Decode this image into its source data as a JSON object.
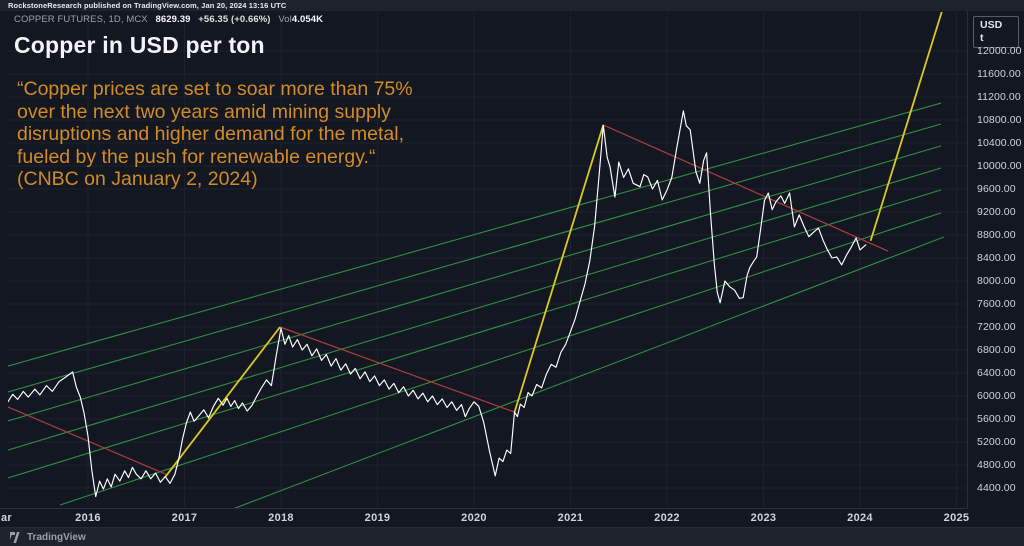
{
  "banner": {
    "text": "RockstoneResearch published on TradingView.com, Jan 20, 2024 13:16 UTC"
  },
  "legend": {
    "symbol": "COPPER FUTURES, 1D, MCX",
    "price": "8629.39",
    "change": "+56.35 (+0.66%)",
    "vol_label": "Vol",
    "volume": "4.054K"
  },
  "title": "Copper in USD per ton",
  "quote": {
    "lines": [
      "“Copper prices are set to soar more than 75%",
      "over the next two years amid mining supply",
      "disruptions and higher demand for the metal,",
      "fueled by the push for renewable energy.“",
      "(CNBC on January 2, 2024)"
    ]
  },
  "price_axis": {
    "unit_top": "USD",
    "unit_bottom": "t",
    "labels": [
      "12000.00",
      "11600.00",
      "11200.00",
      "10800.00",
      "10400.00",
      "10000.00",
      "9600.00",
      "9200.00",
      "8800.00",
      "8400.00",
      "8000.00",
      "7600.00",
      "7200.00",
      "6800.00",
      "6400.00",
      "6000.00",
      "5600.00",
      "5200.00",
      "4800.00",
      "4400.00"
    ]
  },
  "time_axis": {
    "partial_left": "ar",
    "years": [
      "2016",
      "2017",
      "2018",
      "2019",
      "2020",
      "2021",
      "2022",
      "2023",
      "2024",
      "2025"
    ]
  },
  "footer": {
    "brand": "TradingView",
    "logo_icon": "tradingview-icon"
  },
  "colors": {
    "background": "#131722",
    "panel": "#1e222d",
    "grid": "#1b2029",
    "price_line": "#ffffff",
    "green_line": "#2f8f3f",
    "red_line": "#ad3e3e",
    "yellow_line": "#ddc81f",
    "quote_text": "#d28b25",
    "axis_text": "#cfd3dc"
  },
  "chart_data": {
    "type": "line",
    "title": "Copper in USD per ton",
    "x_unit": "year (decimal)",
    "y_unit": "USD per ton",
    "x_range": [
      2015.17,
      2025.1
    ],
    "y_range": [
      4000,
      12450
    ],
    "grid": "faint",
    "legend_position": "top-left",
    "series": [
      {
        "name": "COPPER FUTURES MCX (close)",
        "color": "#ffffff",
        "points": [
          [
            2015.17,
            5900
          ],
          [
            2015.22,
            6030
          ],
          [
            2015.27,
            5940
          ],
          [
            2015.33,
            6080
          ],
          [
            2015.38,
            5980
          ],
          [
            2015.45,
            6120
          ],
          [
            2015.5,
            6020
          ],
          [
            2015.57,
            6180
          ],
          [
            2015.63,
            6080
          ],
          [
            2015.7,
            6250
          ],
          [
            2015.77,
            6330
          ],
          [
            2015.84,
            6420
          ],
          [
            2015.88,
            6150
          ],
          [
            2015.92,
            5980
          ],
          [
            2015.96,
            5700
          ],
          [
            2016.0,
            5300
          ],
          [
            2016.04,
            4700
          ],
          [
            2016.08,
            4250
          ],
          [
            2016.12,
            4520
          ],
          [
            2016.16,
            4380
          ],
          [
            2016.2,
            4560
          ],
          [
            2016.24,
            4420
          ],
          [
            2016.28,
            4640
          ],
          [
            2016.33,
            4520
          ],
          [
            2016.38,
            4700
          ],
          [
            2016.42,
            4580
          ],
          [
            2016.46,
            4760
          ],
          [
            2016.5,
            4640
          ],
          [
            2016.55,
            4560
          ],
          [
            2016.6,
            4700
          ],
          [
            2016.65,
            4560
          ],
          [
            2016.7,
            4660
          ],
          [
            2016.75,
            4500
          ],
          [
            2016.8,
            4600
          ],
          [
            2016.85,
            4480
          ],
          [
            2016.9,
            4640
          ],
          [
            2016.94,
            4900
          ],
          [
            2016.98,
            5260
          ],
          [
            2017.02,
            5530
          ],
          [
            2017.06,
            5720
          ],
          [
            2017.1,
            5560
          ],
          [
            2017.15,
            5660
          ],
          [
            2017.2,
            5760
          ],
          [
            2017.25,
            5620
          ],
          [
            2017.3,
            5820
          ],
          [
            2017.35,
            5960
          ],
          [
            2017.4,
            5840
          ],
          [
            2017.44,
            5960
          ],
          [
            2017.48,
            5820
          ],
          [
            2017.52,
            5920
          ],
          [
            2017.56,
            5780
          ],
          [
            2017.6,
            5880
          ],
          [
            2017.65,
            5740
          ],
          [
            2017.7,
            5840
          ],
          [
            2017.75,
            6000
          ],
          [
            2017.8,
            6150
          ],
          [
            2017.85,
            6280
          ],
          [
            2017.9,
            6180
          ],
          [
            2017.95,
            6700
          ],
          [
            2018.0,
            7180
          ],
          [
            2018.04,
            6900
          ],
          [
            2018.08,
            7050
          ],
          [
            2018.12,
            6850
          ],
          [
            2018.17,
            6980
          ],
          [
            2018.22,
            6800
          ],
          [
            2018.27,
            6900
          ],
          [
            2018.32,
            6700
          ],
          [
            2018.37,
            6820
          ],
          [
            2018.42,
            6620
          ],
          [
            2018.47,
            6720
          ],
          [
            2018.52,
            6520
          ],
          [
            2018.57,
            6650
          ],
          [
            2018.62,
            6450
          ],
          [
            2018.67,
            6560
          ],
          [
            2018.72,
            6380
          ],
          [
            2018.77,
            6480
          ],
          [
            2018.82,
            6300
          ],
          [
            2018.87,
            6420
          ],
          [
            2018.92,
            6250
          ],
          [
            2018.97,
            6350
          ],
          [
            2019.02,
            6180
          ],
          [
            2019.07,
            6280
          ],
          [
            2019.12,
            6120
          ],
          [
            2019.17,
            6220
          ],
          [
            2019.22,
            6060
          ],
          [
            2019.27,
            6160
          ],
          [
            2019.32,
            6000
          ],
          [
            2019.37,
            6100
          ],
          [
            2019.42,
            5950
          ],
          [
            2019.47,
            6050
          ],
          [
            2019.52,
            5900
          ],
          [
            2019.57,
            6000
          ],
          [
            2019.62,
            5850
          ],
          [
            2019.67,
            5950
          ],
          [
            2019.72,
            5800
          ],
          [
            2019.77,
            5900
          ],
          [
            2019.82,
            5750
          ],
          [
            2019.87,
            5850
          ],
          [
            2019.91,
            5640
          ],
          [
            2019.95,
            5780
          ],
          [
            2020.0,
            5900
          ],
          [
            2020.05,
            5820
          ],
          [
            2020.1,
            5550
          ],
          [
            2020.16,
            5050
          ],
          [
            2020.22,
            4610
          ],
          [
            2020.26,
            4920
          ],
          [
            2020.3,
            4860
          ],
          [
            2020.34,
            5060
          ],
          [
            2020.38,
            5000
          ],
          [
            2020.42,
            5720
          ],
          [
            2020.45,
            5640
          ],
          [
            2020.48,
            5860
          ],
          [
            2020.52,
            5800
          ],
          [
            2020.56,
            6060
          ],
          [
            2020.6,
            6000
          ],
          [
            2020.65,
            6200
          ],
          [
            2020.7,
            6140
          ],
          [
            2020.75,
            6380
          ],
          [
            2020.8,
            6550
          ],
          [
            2020.85,
            6500
          ],
          [
            2020.9,
            6760
          ],
          [
            2020.95,
            6900
          ],
          [
            2021.0,
            7120
          ],
          [
            2021.05,
            7350
          ],
          [
            2021.1,
            7650
          ],
          [
            2021.15,
            7950
          ],
          [
            2021.2,
            8350
          ],
          [
            2021.25,
            8950
          ],
          [
            2021.3,
            9900
          ],
          [
            2021.34,
            10710
          ],
          [
            2021.38,
            10150
          ],
          [
            2021.41,
            9980
          ],
          [
            2021.46,
            9460
          ],
          [
            2021.5,
            10070
          ],
          [
            2021.55,
            9800
          ],
          [
            2021.6,
            9950
          ],
          [
            2021.65,
            9700
          ],
          [
            2021.72,
            9640
          ],
          [
            2021.76,
            9850
          ],
          [
            2021.8,
            9810
          ],
          [
            2021.85,
            9600
          ],
          [
            2021.9,
            9750
          ],
          [
            2021.95,
            9410
          ],
          [
            2022.0,
            9580
          ],
          [
            2022.05,
            9800
          ],
          [
            2022.1,
            10300
          ],
          [
            2022.17,
            10960
          ],
          [
            2022.2,
            10700
          ],
          [
            2022.24,
            10630
          ],
          [
            2022.3,
            9900
          ],
          [
            2022.34,
            9700
          ],
          [
            2022.38,
            10100
          ],
          [
            2022.41,
            10230
          ],
          [
            2022.45,
            9200
          ],
          [
            2022.49,
            8300
          ],
          [
            2022.52,
            7810
          ],
          [
            2022.55,
            7620
          ],
          [
            2022.6,
            8000
          ],
          [
            2022.65,
            7900
          ],
          [
            2022.7,
            7840
          ],
          [
            2022.75,
            7700
          ],
          [
            2022.79,
            7710
          ],
          [
            2022.83,
            8100
          ],
          [
            2022.86,
            8240
          ],
          [
            2022.9,
            8350
          ],
          [
            2022.93,
            8420
          ],
          [
            2022.97,
            8900
          ],
          [
            2023.01,
            9400
          ],
          [
            2023.05,
            9530
          ],
          [
            2023.09,
            9240
          ],
          [
            2023.13,
            9380
          ],
          [
            2023.18,
            9480
          ],
          [
            2023.22,
            9350
          ],
          [
            2023.27,
            9530
          ],
          [
            2023.32,
            8940
          ],
          [
            2023.37,
            9150
          ],
          [
            2023.42,
            8950
          ],
          [
            2023.47,
            8770
          ],
          [
            2023.52,
            8850
          ],
          [
            2023.57,
            8920
          ],
          [
            2023.62,
            8700
          ],
          [
            2023.66,
            8550
          ],
          [
            2023.71,
            8400
          ],
          [
            2023.76,
            8420
          ],
          [
            2023.81,
            8280
          ],
          [
            2023.86,
            8450
          ],
          [
            2023.91,
            8590
          ],
          [
            2023.96,
            8750
          ],
          [
            2024.0,
            8540
          ],
          [
            2024.06,
            8629
          ]
        ]
      }
    ],
    "annotations": {
      "green_channel_lines": [
        [
          2015.17,
          6520,
          2024.84,
          11095
        ],
        [
          2015.17,
          6070,
          2024.84,
          10730
        ],
        [
          2015.17,
          5565,
          2024.84,
          10350
        ],
        [
          2015.17,
          5060,
          2024.84,
          9965
        ],
        [
          2015.17,
          4575,
          2024.84,
          9585
        ],
        [
          2015.71,
          4105,
          2024.84,
          9185
        ],
        [
          2017.47,
          4015,
          2024.87,
          8765
        ]
      ],
      "red_trend_lines": [
        [
          2015.17,
          5810,
          2016.82,
          4630
        ],
        [
          2017.99,
          7200,
          2020.42,
          5720
        ],
        [
          2021.34,
          10713,
          2024.29,
          8520
        ]
      ],
      "yellow_impulse_lines": [
        [
          2016.8,
          4590,
          2017.99,
          7200
        ],
        [
          2020.42,
          5720,
          2021.34,
          10713
        ],
        [
          2024.11,
          8700,
          2024.86,
          12750
        ]
      ]
    }
  }
}
